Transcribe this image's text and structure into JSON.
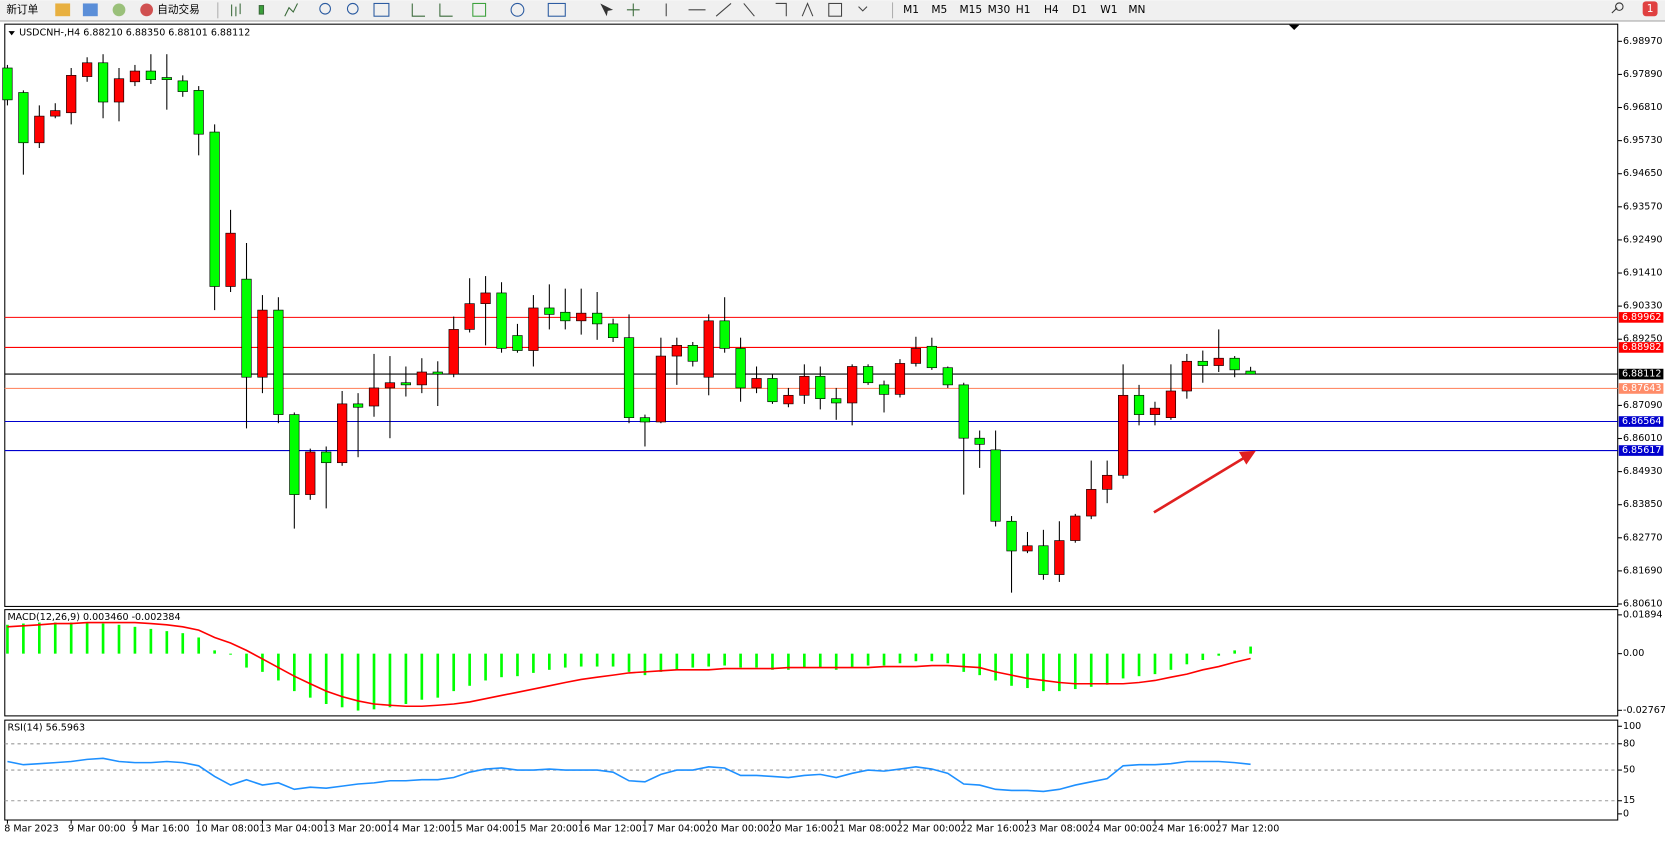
{
  "toolbar": {
    "new_order": "新订单",
    "auto_trading": "自动交易",
    "timeframes": [
      "M1",
      "M5",
      "M15",
      "M30",
      "H1",
      "H4",
      "D1",
      "W1",
      "MN"
    ],
    "notification_count": 1
  },
  "chart_data": [
    {
      "type": "candlestick",
      "title": "USDCNH-,H4  6.88210 6.88350 6.88101 6.88112",
      "categories": [
        "8 Mar 2023",
        null,
        null,
        null,
        "9 Mar 00:00",
        null,
        null,
        null,
        "9 Mar 16:00",
        null,
        null,
        null,
        "10 Mar 08:00",
        null,
        null,
        null,
        "13 Mar 04:00",
        null,
        null,
        null,
        "13 Mar 20:00",
        null,
        null,
        null,
        "14 Mar 12:00",
        null,
        null,
        null,
        "15 Mar 04:00",
        null,
        null,
        null,
        "15 Mar 20:00",
        null,
        null,
        null,
        "16 Mar 12:00",
        null,
        null,
        null,
        "17 Mar 04:00",
        null,
        null,
        null,
        "20 Mar 00:00",
        null,
        null,
        null,
        "20 Mar 16:00",
        null,
        null,
        null,
        "21 Mar 08:00",
        null,
        null,
        null,
        "22 Mar 00:00",
        null,
        null,
        null,
        "22 Mar 16:00",
        null,
        null,
        null,
        "23 Mar 08:00",
        null,
        null,
        null,
        "24 Mar 00:00",
        null,
        null,
        null,
        "24 Mar 16:00",
        null,
        null,
        null,
        "27 Mar 12:00",
        null,
        null
      ],
      "open": [
        6.981,
        6.973,
        6.9566,
        6.9653,
        6.9664,
        6.9782,
        6.9827,
        6.9699,
        6.9765,
        6.98,
        6.9779,
        6.9768,
        6.9737,
        6.9601,
        6.9097,
        6.9121,
        6.8801,
        6.902,
        6.8679,
        6.8418,
        6.8557,
        6.8522,
        6.8714,
        6.8707,
        6.8766,
        6.8783,
        6.8776,
        6.8818,
        6.8811,
        6.8957,
        6.9041,
        6.9076,
        6.8937,
        6.8888,
        6.9027,
        6.9013,
        6.8985,
        6.901,
        6.8975,
        6.893,
        6.8669,
        6.8655,
        6.887,
        6.8905,
        6.8801,
        6.8985,
        6.8895,
        6.8766,
        6.8797,
        6.8714,
        6.8742,
        6.8804,
        6.8731,
        6.8717,
        6.8836,
        6.8776,
        6.8745,
        6.8846,
        6.8902,
        6.8832,
        6.8776,
        6.8602,
        6.8564,
        6.8331,
        6.8234,
        6.8251,
        6.8157,
        6.8268,
        6.8348,
        6.8435,
        6.8481,
        6.8742,
        6.8679,
        6.8669,
        6.8756,
        6.8853,
        6.8839,
        6.8863,
        6.8821
      ],
      "high": [
        6.982,
        6.9737,
        6.9688,
        6.9695,
        6.981,
        6.9845,
        6.9855,
        6.981,
        6.982,
        6.9855,
        6.9855,
        6.9786,
        6.9751,
        6.9626,
        6.9347,
        6.9239,
        6.9069,
        6.9062,
        6.8686,
        6.8568,
        6.8575,
        6.8756,
        6.8749,
        6.8877,
        6.887,
        6.8836,
        6.8863,
        6.8853,
        6.8999,
        6.9124,
        6.9131,
        6.9111,
        6.8975,
        6.9069,
        6.9104,
        6.909,
        6.909,
        6.9079,
        6.8992,
        6.9006,
        6.8679,
        6.893,
        6.893,
        6.8916,
        6.9006,
        6.9062,
        6.893,
        6.8836,
        6.8811,
        6.8766,
        6.8843,
        6.8836,
        6.8766,
        6.8843,
        6.8843,
        6.879,
        6.886,
        6.8933,
        6.893,
        6.8836,
        6.8783,
        6.8627,
        6.8627,
        6.8348,
        6.8296,
        6.8303,
        6.8331,
        6.8355,
        6.8529,
        6.8529,
        6.8843,
        6.8776,
        6.8721,
        6.8843,
        6.8877,
        6.8888,
        6.8957,
        6.887,
        6.8835
      ],
      "low": [
        6.9688,
        6.9462,
        6.9549,
        6.9646,
        6.9626,
        6.9765,
        6.9646,
        6.9636,
        6.9751,
        6.9758,
        6.9674,
        6.9716,
        6.9525,
        6.902,
        6.9079,
        6.8634,
        6.8749,
        6.8651,
        6.8307,
        6.8401,
        6.8373,
        6.8512,
        6.854,
        6.8672,
        6.8602,
        6.8738,
        6.8749,
        6.8707,
        6.8801,
        6.8947,
        6.8905,
        6.8881,
        6.8881,
        6.8836,
        6.8957,
        6.8957,
        6.894,
        6.8923,
        6.8916,
        6.8651,
        6.8575,
        6.8651,
        6.8776,
        6.8836,
        6.8742,
        6.8881,
        6.8721,
        6.8749,
        6.8714,
        6.8703,
        6.8714,
        6.8696,
        6.8662,
        6.8644,
        6.8776,
        6.8686,
        6.8735,
        6.8836,
        6.8825,
        6.8766,
        6.8418,
        6.8505,
        6.8314,
        6.8098,
        6.8227,
        6.814,
        6.8133,
        6.8261,
        6.8338,
        6.839,
        6.847,
        6.8644,
        6.8644,
        6.8662,
        6.8731,
        6.8783,
        6.8818,
        6.8801,
        6.88101
      ],
      "close": [
        6.9706,
        6.9566,
        6.9653,
        6.9671,
        6.9786,
        6.9827,
        6.9699,
        6.9775,
        6.98,
        6.9772,
        6.9772,
        6.9733,
        6.9594,
        6.9097,
        6.9271,
        6.8801,
        6.902,
        6.8679,
        6.8418,
        6.8557,
        6.8522,
        6.8714,
        6.8703,
        6.8766,
        6.8783,
        6.8776,
        6.8818,
        6.8811,
        6.8957,
        6.9041,
        6.9076,
        6.8895,
        6.8888,
        6.9027,
        6.9006,
        6.8985,
        6.901,
        6.8975,
        6.893,
        6.8669,
        6.8655,
        6.887,
        6.8905,
        6.8853,
        6.8985,
        6.8895,
        6.8766,
        6.8797,
        6.8721,
        6.8742,
        6.8804,
        6.8731,
        6.8717,
        6.8836,
        6.8783,
        6.8745,
        6.8846,
        6.8895,
        6.8832,
        6.8776,
        6.8602,
        6.8582,
        6.8331,
        6.8234,
        6.8251,
        6.8157,
        6.8268,
        6.8348,
        6.8435,
        6.8481,
        6.8742,
        6.8679,
        6.87,
        6.8756,
        6.8853,
        6.8839,
        6.8863,
        6.8825,
        6.88112
      ],
      "up_color": "#ff0000",
      "down_color": "#00ff00",
      "ylim": [
        6.8053,
        6.9953
      ],
      "yticks": [
        {
          "value": 6.9897,
          "label": "6.98970"
        },
        {
          "value": 6.9789,
          "label": "6.97890"
        },
        {
          "value": 6.9681,
          "label": "6.96810"
        },
        {
          "value": 6.9573,
          "label": "6.95730"
        },
        {
          "value": 6.9465,
          "label": "6.94650"
        },
        {
          "value": 6.9357,
          "label": "6.93570"
        },
        {
          "value": 6.9249,
          "label": "6.92490"
        },
        {
          "value": 6.9141,
          "label": "6.91410"
        },
        {
          "value": 6.9033,
          "label": "6.90330"
        },
        {
          "value": 6.8925,
          "label": "6.89250"
        },
        {
          "value": 6.8709,
          "label": "6.87090"
        },
        {
          "value": 6.8601,
          "label": "6.86010"
        },
        {
          "value": 6.8493,
          "label": "6.84930"
        },
        {
          "value": 6.8385,
          "label": "6.83850"
        },
        {
          "value": 6.8277,
          "label": "6.82770"
        },
        {
          "value": 6.8169,
          "label": "6.81690"
        },
        {
          "value": 6.8061,
          "label": "6.80610"
        }
      ],
      "price_lines": [
        {
          "value": 6.89962,
          "color": "#ff0000"
        },
        {
          "value": 6.88982,
          "color": "#ff0000"
        },
        {
          "value": 6.88112,
          "color": "#000000"
        },
        {
          "value": 6.87643,
          "color": "#ff8c69"
        },
        {
          "value": 6.86564,
          "color": "#0000cd"
        },
        {
          "value": 6.85617,
          "color": "#0000cd"
        }
      ]
    },
    {
      "type": "macd",
      "title": "MACD(12,26,9) 0.003460 -0.002384",
      "ylim": [
        -0.0304,
        0.0215
      ],
      "yticks": [
        0.01894,
        {
          "value": 0,
          "label": "0.00"
        },
        -0.027675
      ],
      "series": [
        {
          "type": "bar",
          "color": "#00ff00",
          "values": [
            0.0141,
            0.0147,
            0.0152,
            0.0152,
            0.0152,
            0.0152,
            0.0147,
            0.0141,
            0.0131,
            0.0121,
            0.011,
            0.01,
            0.0079,
            0.0016,
            -0.0005,
            -0.0068,
            -0.0089,
            -0.0131,
            -0.0183,
            -0.0215,
            -0.0246,
            -0.0262,
            -0.0278,
            -0.0272,
            -0.0262,
            -0.0246,
            -0.0225,
            -0.0215,
            -0.0183,
            -0.0157,
            -0.0131,
            -0.0115,
            -0.011,
            -0.0094,
            -0.0079,
            -0.0068,
            -0.0063,
            -0.0063,
            -0.0063,
            -0.0089,
            -0.0105,
            -0.0089,
            -0.0079,
            -0.0068,
            -0.0063,
            -0.0058,
            -0.0068,
            -0.0068,
            -0.0079,
            -0.0079,
            -0.0068,
            -0.0068,
            -0.0079,
            -0.0068,
            -0.0058,
            -0.0058,
            -0.0047,
            -0.0037,
            -0.0037,
            -0.0047,
            -0.0089,
            -0.0105,
            -0.0131,
            -0.0157,
            -0.0168,
            -0.0183,
            -0.0183,
            -0.0173,
            -0.0162,
            -0.0152,
            -0.0121,
            -0.011,
            -0.01,
            -0.0079,
            -0.0052,
            -0.0031,
            -0.001,
            0.0016,
            0.00346
          ]
        },
        {
          "type": "line",
          "color": "#ff0000",
          "values": [
            0.0131,
            0.0136,
            0.0141,
            0.0147,
            0.0147,
            0.0152,
            0.0152,
            0.0152,
            0.0152,
            0.0147,
            0.0141,
            0.0131,
            0.0115,
            0.0079,
            0.0052,
            0.0016,
            -0.0026,
            -0.0068,
            -0.011,
            -0.0147,
            -0.0183,
            -0.021,
            -0.0231,
            -0.0246,
            -0.0252,
            -0.0257,
            -0.0257,
            -0.0252,
            -0.0246,
            -0.0236,
            -0.022,
            -0.0204,
            -0.0189,
            -0.0173,
            -0.0157,
            -0.0141,
            -0.0126,
            -0.0115,
            -0.0105,
            -0.0094,
            -0.0089,
            -0.0084,
            -0.0079,
            -0.0079,
            -0.0079,
            -0.0073,
            -0.0073,
            -0.0073,
            -0.0073,
            -0.0068,
            -0.0068,
            -0.0068,
            -0.0068,
            -0.0068,
            -0.0068,
            -0.0063,
            -0.0063,
            -0.0063,
            -0.0058,
            -0.0058,
            -0.0063,
            -0.0068,
            -0.0089,
            -0.0105,
            -0.0121,
            -0.0131,
            -0.0141,
            -0.0147,
            -0.0147,
            -0.0147,
            -0.0147,
            -0.0141,
            -0.0131,
            -0.0115,
            -0.01,
            -0.0079,
            -0.0063,
            -0.0042,
            -0.002384
          ]
        }
      ]
    },
    {
      "type": "line",
      "title": "RSI(14) 56.5963",
      "color": "#1e90ff",
      "ylim": [
        -7,
        107
      ],
      "yticks": [
        100,
        80,
        50,
        15,
        0
      ],
      "levels": [
        80,
        50,
        15
      ],
      "values": [
        59.8,
        56.1,
        57.3,
        58.5,
        59.8,
        62.2,
        63.4,
        59.8,
        58.5,
        58.5,
        59.8,
        58.5,
        54.9,
        42.7,
        32.9,
        39.0,
        32.9,
        35.4,
        28.0,
        30.5,
        29.3,
        31.7,
        34.1,
        35.4,
        37.8,
        37.8,
        39.0,
        39.0,
        41.5,
        47.6,
        51.2,
        52.4,
        50.0,
        50.0,
        51.2,
        50.0,
        50.0,
        50.0,
        47.6,
        37.8,
        36.6,
        45.1,
        50.0,
        50.0,
        53.7,
        52.4,
        43.9,
        43.9,
        42.7,
        41.5,
        43.9,
        45.1,
        41.5,
        46.3,
        50.0,
        48.8,
        51.2,
        53.7,
        51.2,
        46.3,
        34.1,
        32.9,
        28.0,
        26.8,
        26.8,
        25.6,
        28.0,
        32.9,
        36.6,
        40.2,
        54.9,
        56.1,
        56.1,
        57.3,
        59.8,
        59.8,
        59.8,
        58.5,
        56.5963
      ]
    }
  ]
}
